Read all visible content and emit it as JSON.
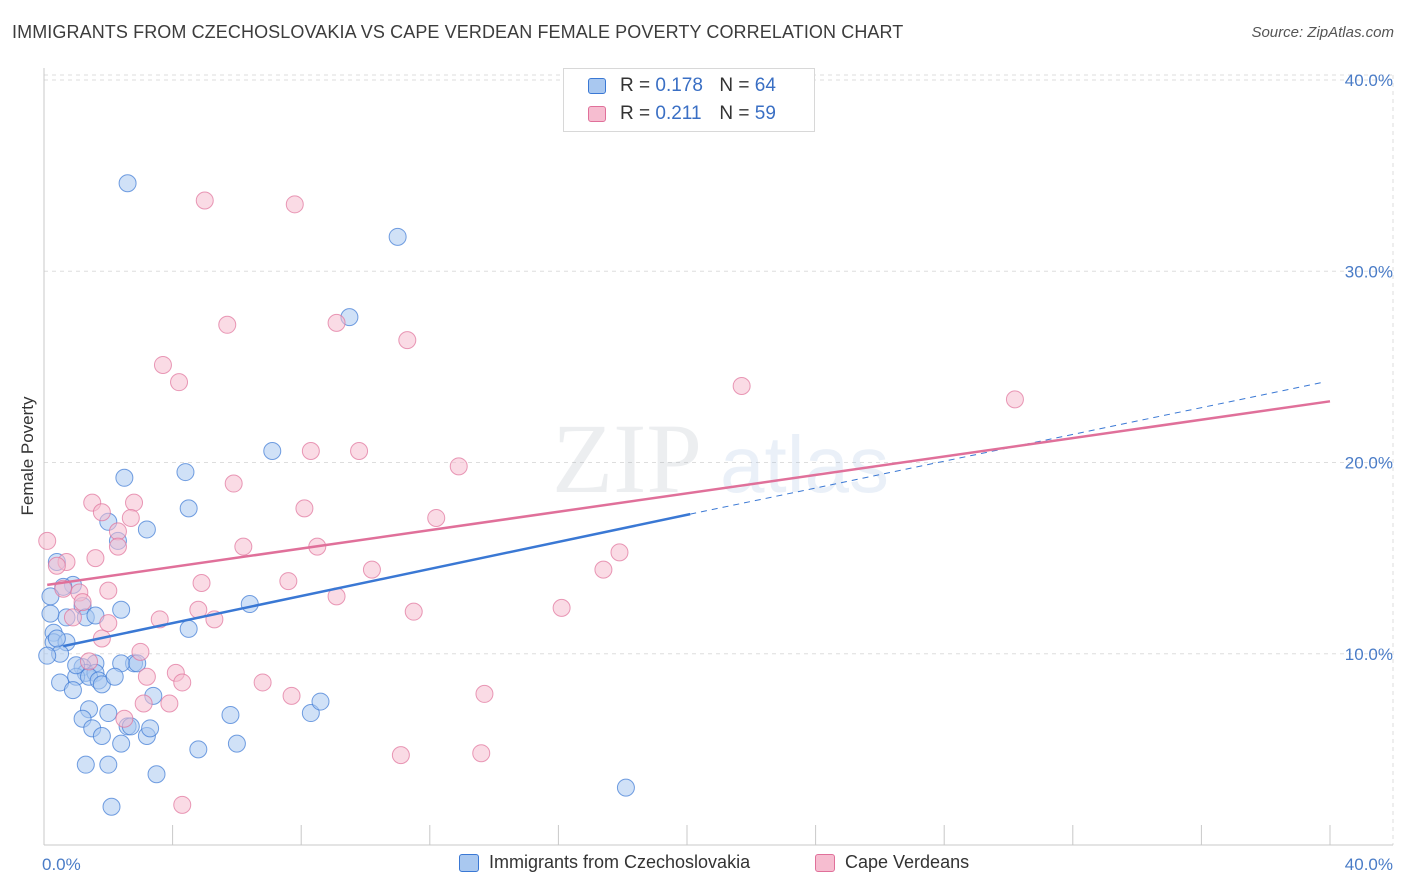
{
  "header": {
    "title": "IMMIGRANTS FROM CZECHOSLOVAKIA VS CAPE VERDEAN FEMALE POVERTY CORRELATION CHART",
    "source": "Source: ZipAtlas.com"
  },
  "watermark": {
    "zip": "ZIP",
    "atlas": "atlas"
  },
  "legend": {
    "rows": [
      {
        "r_label": "R =",
        "r_value": "0.178",
        "n_label": "N =",
        "n_value": "64"
      },
      {
        "r_label": "R =",
        "r_value": "0.211",
        "n_label": "N =",
        "n_value": "59"
      }
    ]
  },
  "bottom_legend": {
    "items": [
      {
        "label": "Immigrants from Czechoslovakia"
      },
      {
        "label": "Cape Verdeans"
      }
    ]
  },
  "colors": {
    "blue": "#3a78d4",
    "blue_fill": "#a9c8f0",
    "pink": "#e0709a",
    "pink_fill": "#f6bdd0",
    "grid": "#dddddd",
    "tick_text": "#4a7cc7"
  },
  "chart_data": {
    "type": "scatter",
    "title": "IMMIGRANTS FROM CZECHOSLOVAKIA VS CAPE VERDEAN FEMALE POVERTY CORRELATION CHART",
    "xlabel": "",
    "ylabel": "Female Poverty",
    "xlim": [
      0,
      40
    ],
    "ylim": [
      0,
      40
    ],
    "x_tick_labels": [
      "0.0%",
      "40.0%"
    ],
    "y_ticks": [
      10,
      20,
      30,
      40
    ],
    "y_tick_labels": [
      "10.0%",
      "20.0%",
      "30.0%",
      "40.0%"
    ],
    "grid": true,
    "series": [
      {
        "name": "Immigrants from Czechoslovakia",
        "color": "#3a78d4",
        "r": 0.178,
        "n": 64,
        "trend": {
          "x0": 0.6,
          "y0": 10.4,
          "x1": 20.1,
          "y1": 17.3,
          "dashed_to_x": 39.8,
          "dashed_to_y": 24.2
        },
        "points": [
          [
            2.6,
            34.6
          ],
          [
            11.0,
            31.8
          ],
          [
            9.5,
            27.6
          ],
          [
            7.1,
            20.6
          ],
          [
            4.4,
            19.5
          ],
          [
            2.5,
            19.2
          ],
          [
            4.5,
            17.6
          ],
          [
            3.2,
            16.5
          ],
          [
            2.3,
            15.9
          ],
          [
            2.0,
            16.9
          ],
          [
            0.4,
            14.8
          ],
          [
            0.9,
            13.6
          ],
          [
            0.6,
            13.5
          ],
          [
            1.2,
            12.5
          ],
          [
            2.4,
            12.3
          ],
          [
            0.7,
            11.9
          ],
          [
            1.3,
            11.9
          ],
          [
            4.5,
            11.3
          ],
          [
            6.4,
            12.6
          ],
          [
            0.2,
            12.1
          ],
          [
            0.3,
            11.1
          ],
          [
            0.3,
            10.6
          ],
          [
            0.7,
            10.6
          ],
          [
            0.5,
            10.0
          ],
          [
            1.6,
            9.5
          ],
          [
            1.2,
            9.3
          ],
          [
            1.3,
            9.0
          ],
          [
            1.0,
            8.8
          ],
          [
            1.6,
            9.0
          ],
          [
            2.8,
            9.5
          ],
          [
            0.5,
            8.5
          ],
          [
            0.9,
            8.1
          ],
          [
            1.4,
            8.8
          ],
          [
            1.7,
            8.6
          ],
          [
            1.8,
            8.4
          ],
          [
            2.4,
            9.5
          ],
          [
            3.4,
            7.8
          ],
          [
            1.4,
            7.1
          ],
          [
            1.2,
            6.6
          ],
          [
            2.0,
            6.9
          ],
          [
            2.6,
            6.2
          ],
          [
            2.7,
            6.2
          ],
          [
            1.5,
            6.1
          ],
          [
            1.8,
            5.7
          ],
          [
            3.2,
            5.7
          ],
          [
            2.4,
            5.3
          ],
          [
            4.8,
            5.0
          ],
          [
            5.8,
            6.8
          ],
          [
            6.0,
            5.3
          ],
          [
            8.3,
            6.9
          ],
          [
            8.6,
            7.5
          ],
          [
            1.3,
            4.2
          ],
          [
            2.0,
            4.2
          ],
          [
            3.5,
            3.7
          ],
          [
            2.1,
            2.0
          ],
          [
            18.1,
            3.0
          ],
          [
            0.2,
            13.0
          ],
          [
            0.1,
            9.9
          ],
          [
            1.6,
            12.0
          ],
          [
            2.9,
            9.5
          ],
          [
            0.4,
            10.8
          ],
          [
            1.0,
            9.4
          ],
          [
            2.2,
            8.8
          ],
          [
            3.3,
            6.1
          ]
        ]
      },
      {
        "name": "Cape Verdeans",
        "color": "#e0709a",
        "r": 0.211,
        "n": 59,
        "trend": {
          "x0": 0.1,
          "y0": 13.6,
          "x1": 40.0,
          "y1": 23.2
        },
        "points": [
          [
            5.0,
            33.7
          ],
          [
            7.8,
            33.5
          ],
          [
            5.7,
            27.2
          ],
          [
            9.1,
            27.3
          ],
          [
            11.3,
            26.4
          ],
          [
            3.7,
            25.1
          ],
          [
            4.2,
            24.2
          ],
          [
            21.7,
            24.0
          ],
          [
            30.2,
            23.3
          ],
          [
            8.3,
            20.6
          ],
          [
            9.8,
            20.6
          ],
          [
            12.9,
            19.8
          ],
          [
            5.9,
            18.9
          ],
          [
            1.5,
            17.9
          ],
          [
            2.8,
            17.9
          ],
          [
            8.1,
            17.6
          ],
          [
            1.8,
            17.4
          ],
          [
            2.7,
            17.1
          ],
          [
            12.2,
            17.1
          ],
          [
            2.3,
            16.4
          ],
          [
            6.2,
            15.6
          ],
          [
            8.5,
            15.6
          ],
          [
            2.3,
            15.6
          ],
          [
            1.6,
            15.0
          ],
          [
            0.7,
            14.8
          ],
          [
            17.9,
            15.3
          ],
          [
            0.1,
            15.9
          ],
          [
            17.4,
            14.4
          ],
          [
            10.2,
            14.4
          ],
          [
            7.6,
            13.8
          ],
          [
            4.9,
            13.7
          ],
          [
            0.6,
            13.4
          ],
          [
            2.0,
            13.3
          ],
          [
            1.1,
            13.2
          ],
          [
            9.1,
            13.0
          ],
          [
            1.2,
            12.7
          ],
          [
            16.1,
            12.4
          ],
          [
            4.8,
            12.3
          ],
          [
            11.5,
            12.2
          ],
          [
            3.6,
            11.8
          ],
          [
            0.9,
            11.9
          ],
          [
            5.3,
            11.8
          ],
          [
            1.8,
            10.8
          ],
          [
            3.0,
            10.1
          ],
          [
            4.1,
            9.0
          ],
          [
            3.2,
            8.8
          ],
          [
            4.3,
            8.5
          ],
          [
            6.8,
            8.5
          ],
          [
            7.7,
            7.8
          ],
          [
            13.7,
            7.9
          ],
          [
            3.9,
            7.4
          ],
          [
            3.1,
            7.4
          ],
          [
            2.5,
            6.6
          ],
          [
            11.1,
            4.7
          ],
          [
            13.6,
            4.8
          ],
          [
            4.3,
            2.1
          ],
          [
            0.4,
            14.6
          ],
          [
            2.0,
            11.6
          ],
          [
            1.4,
            9.6
          ]
        ]
      }
    ]
  }
}
